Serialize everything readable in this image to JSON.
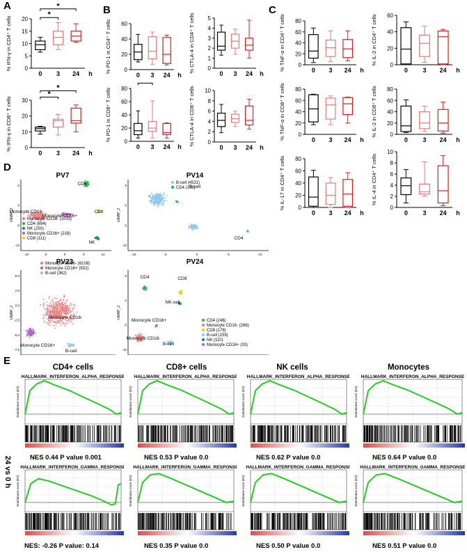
{
  "panels": {
    "A": "A",
    "B": "B",
    "C": "C",
    "D": "D",
    "E": "E"
  },
  "x_ticks": [
    "0",
    "3",
    "24"
  ],
  "x_unit": "h",
  "sig": "*",
  "colors": {
    "t0": "#000000",
    "t3": "#e8797a",
    "t24": "#d81e1e",
    "gsea_curve": "#22cc22",
    "heat_red": "#d9534f",
    "heat_blue": "#2a3fa8"
  },
  "chart_data": [
    {
      "id": "A1",
      "type": "box",
      "ylabel": "% IFN-γ in CD4⁺ T cells",
      "yticks": [
        "0",
        "5",
        "10",
        "15",
        "20"
      ],
      "ylim": [
        0,
        20
      ],
      "boxes": [
        {
          "min": 6.5,
          "q1": 7.5,
          "med": 9.5,
          "q3": 11,
          "max": 12.5
        },
        {
          "min": 7.5,
          "q1": 9.5,
          "med": 12.5,
          "q3": 15,
          "max": 18.5
        },
        {
          "min": 10.5,
          "q1": 11,
          "med": 13,
          "q3": 15,
          "max": 18
        }
      ]
    },
    {
      "id": "A2",
      "type": "box",
      "ylabel": "% IFN-γ in CD8⁺ T cells",
      "yticks": [
        "0",
        "10",
        "20",
        "30"
      ],
      "ylim": [
        0,
        30
      ],
      "boxes": [
        {
          "min": 8.5,
          "q1": 10.5,
          "med": 12,
          "q3": 13,
          "max": 13.5
        },
        {
          "min": 8,
          "q1": 13,
          "med": 17,
          "q3": 18,
          "max": 21
        },
        {
          "min": 10,
          "q1": 15.5,
          "med": 17,
          "q3": 25,
          "max": 27
        }
      ]
    },
    {
      "id": "B1",
      "type": "box",
      "ylabel": "% PD-1 in CD4⁺ T cells",
      "yticks": [
        "0",
        "20",
        "40",
        "60"
      ],
      "ylim": [
        0,
        60
      ],
      "boxes": [
        {
          "min": 10,
          "q1": 13,
          "med": 23,
          "q3": 33,
          "max": 46
        },
        {
          "min": 7,
          "q1": 14,
          "med": 24,
          "q3": 43,
          "max": 49
        },
        {
          "min": 6,
          "q1": 8,
          "med": 20,
          "q3": 42,
          "max": 45
        }
      ]
    },
    {
      "id": "B2",
      "type": "box",
      "ylabel": "% CTLA-4 in CD4⁺ T cells",
      "yticks": [
        "0",
        "1",
        "2",
        "3",
        "4",
        "5"
      ],
      "ylim": [
        0,
        5
      ],
      "boxes": [
        {
          "min": 1.3,
          "q1": 1.8,
          "med": 2.2,
          "q3": 3.6,
          "max": 4.3
        },
        {
          "min": 1.4,
          "q1": 2.0,
          "med": 2.7,
          "q3": 3.4,
          "max": 3.9
        },
        {
          "min": 1.0,
          "q1": 1.8,
          "med": 2.3,
          "q3": 3.0,
          "max": 4.8
        }
      ]
    },
    {
      "id": "B3",
      "type": "box",
      "ylabel": "% PD-1 in CD8⁺ T cells",
      "yticks": [
        "0",
        "20",
        "40",
        "60",
        "80"
      ],
      "ylim": [
        0,
        80
      ],
      "boxes": [
        {
          "min": 5,
          "q1": 10,
          "med": 16,
          "q3": 27,
          "max": 46
        },
        {
          "min": 5,
          "q1": 15,
          "med": 20,
          "q3": 30,
          "max": 61
        },
        {
          "min": 5,
          "q1": 10,
          "med": 13,
          "q3": 27,
          "max": 28
        }
      ]
    },
    {
      "id": "B4",
      "type": "box",
      "ylabel": "% CTLA-4 in CD8⁺ T cells",
      "yticks": [
        "0",
        "2",
        "4",
        "6",
        "8",
        "10"
      ],
      "ylim": [
        0,
        10
      ],
      "boxes": [
        {
          "min": 1.8,
          "q1": 3,
          "med": 4.2,
          "q3": 5.6,
          "max": 7.3
        },
        {
          "min": 3,
          "q1": 3.8,
          "med": 4.5,
          "q3": 5.4,
          "max": 6
        },
        {
          "min": 2.5,
          "q1": 3.3,
          "med": 4.2,
          "q3": 7,
          "max": 8.3
        }
      ]
    },
    {
      "id": "C1",
      "type": "box",
      "ylabel": "% TNF-α in CD4⁺ T cells",
      "yticks": [
        "0",
        "20",
        "40",
        "60",
        "80"
      ],
      "ylim": [
        0,
        80
      ],
      "boxes": [
        {
          "min": 4,
          "q1": 12,
          "med": 25,
          "q3": 55,
          "max": 67
        },
        {
          "min": 6,
          "q1": 15,
          "med": 31,
          "q3": 45,
          "max": 62
        },
        {
          "min": 7,
          "q1": 13,
          "med": 29,
          "q3": 46,
          "max": 62
        }
      ]
    },
    {
      "id": "C2",
      "type": "box",
      "ylabel": "% IL-2 in CD4⁺ T cells",
      "yticks": [
        "0",
        "20",
        "40",
        "60"
      ],
      "ylim": [
        0,
        60
      ],
      "boxes": [
        {
          "min": 0,
          "q1": 1,
          "med": 19,
          "q3": 45,
          "max": 52
        },
        {
          "min": 3,
          "q1": 10,
          "med": 26,
          "q3": 36,
          "max": 47
        },
        {
          "min": 0,
          "q1": 1,
          "med": 34,
          "q3": 41,
          "max": 43
        }
      ]
    },
    {
      "id": "C3",
      "type": "box",
      "ylabel": "% TNF-α in CD8⁺ T cells",
      "yticks": [
        "0",
        "20",
        "40",
        "60",
        "80"
      ],
      "ylim": [
        0,
        80
      ],
      "boxes": [
        {
          "min": 17,
          "q1": 22,
          "med": 45,
          "q3": 70,
          "max": 71
        },
        {
          "min": 17,
          "q1": 27,
          "med": 52,
          "q3": 64,
          "max": 68
        },
        {
          "min": 20,
          "q1": 35,
          "med": 54,
          "q3": 65,
          "max": 66
        }
      ]
    },
    {
      "id": "C4",
      "type": "box",
      "ylabel": "% IL-2 in CD8⁺ T cells",
      "yticks": [
        "0",
        "20",
        "40",
        "60",
        "80"
      ],
      "ylim": [
        0,
        80
      ],
      "boxes": [
        {
          "min": 3,
          "q1": 5,
          "med": 15,
          "q3": 50,
          "max": 61
        },
        {
          "min": 5,
          "q1": 10,
          "med": 20,
          "q3": 40,
          "max": 50
        },
        {
          "min": 2,
          "q1": 6,
          "med": 20,
          "q3": 44,
          "max": 57
        }
      ]
    },
    {
      "id": "C5",
      "type": "box",
      "ylabel": "% IL-17 in CD4⁺ T cells",
      "yticks": [
        "0",
        "20",
        "40",
        "60",
        "80"
      ],
      "ylim": [
        0,
        80
      ],
      "boxes": [
        {
          "min": 0,
          "q1": 2,
          "med": 17,
          "q3": 50,
          "max": 61
        },
        {
          "min": 0,
          "q1": 5,
          "med": 20,
          "q3": 40,
          "max": 49
        },
        {
          "min": 0,
          "q1": 2,
          "med": 22,
          "q3": 46,
          "max": 57
        }
      ]
    },
    {
      "id": "C6",
      "type": "box",
      "ylabel": "% IL-4 in CD4⁺ T cells",
      "yticks": [
        "0",
        "2",
        "4",
        "6",
        "8",
        "10"
      ],
      "ylim": [
        0,
        10
      ],
      "boxes": [
        {
          "min": 0.8,
          "q1": 2.3,
          "med": 3.9,
          "q3": 5.3,
          "max": 6.8
        },
        {
          "min": 2.0,
          "q1": 2.4,
          "med": 2.8,
          "q3": 4.2,
          "max": 8.2
        },
        {
          "min": 0.3,
          "q1": 0.8,
          "med": 3.0,
          "q3": 7.5,
          "max": 9.3
        }
      ]
    }
  ],
  "umaps": [
    {
      "id": "PV7",
      "title": "PV7",
      "xlabel": "UMAP_1",
      "ylabel": "UMAP_2",
      "xticks": [
        "-10",
        "-5",
        "0",
        "5",
        "10"
      ],
      "yticks": [
        "-10",
        "-5",
        "0",
        "5"
      ],
      "legend": [
        "Monocyte CD16- (1033)",
        "CD4 (694)",
        "NK (250)",
        "Monocyte CD16+ (218)",
        "CD8 (111)"
      ],
      "legend_colors": [
        "#f08080",
        "#2db84d",
        "#1b8f86",
        "#c060c8",
        "#e8d21a"
      ],
      "labels": [
        "CD4",
        "Monocyte CD16-",
        "Monocyte CD16+",
        "CD8",
        "NK"
      ]
    },
    {
      "id": "PV14",
      "title": "PV14",
      "xlabel": "UMAP_1",
      "ylabel": "UMAP_2",
      "xticks": [
        "-10",
        "-5",
        "0",
        "5",
        "10"
      ],
      "yticks": [
        "-10",
        "-5",
        "0",
        "5"
      ],
      "legend": [
        "B-cell (4531)",
        "CD4 (102)"
      ],
      "legend_colors": [
        "#8ec8f0",
        "#2db84d"
      ],
      "labels": [
        "B-cell",
        "CD4"
      ]
    },
    {
      "id": "PV23",
      "title": "PV23",
      "xlabel": "UMAP_1",
      "ylabel": "UMAP_2",
      "xticks": [
        "-5.0",
        "-2.5",
        "0.0",
        "2.5",
        "5.0"
      ],
      "yticks": [
        "-7.5",
        "-5.0",
        "-2.5",
        "0.0",
        "2.5",
        "5.0"
      ],
      "legend": [
        "Monocyte CD16- (6108)",
        "Monocyte CD16+ (932)",
        "B-cell (362)"
      ],
      "legend_colors": [
        "#f08080",
        "#b060c8",
        "#8ec8f0"
      ],
      "labels": [
        "Monocyte CD16-",
        "Monocyte CD16+",
        "B-cell"
      ]
    },
    {
      "id": "PV24",
      "title": "PV24",
      "xlabel": "UMAP_1",
      "ylabel": "UMAP_2",
      "xticks": [
        "-10",
        "-5",
        "0",
        "5",
        "10"
      ],
      "yticks": [
        "-10",
        "-5",
        "0",
        "5"
      ],
      "legend": [
        "CD4 (246)",
        "Monocyte CD16- (266)",
        "CD8 (178)",
        "B-cell (159)",
        "NK (110)",
        "Monocyte CD16+ (33)"
      ],
      "legend_colors": [
        "#2db84d",
        "#f08080",
        "#e8d21a",
        "#8ec8f0",
        "#1b8f86",
        "#c060c8"
      ],
      "labels": [
        "CD4",
        "CD8",
        "NK-cell",
        "Monocyte CD16+",
        "Monocyte CD16-",
        "B-cell"
      ]
    }
  ],
  "gsea": {
    "row_label": "24 vs 0 h",
    "ylabel": "Enrichment score (ES)",
    "columns": [
      "CD4+ cells",
      "CD8+ cells",
      "NK cells",
      "Monocytes"
    ],
    "rows": [
      {
        "title": "HALLMARK_INTERFERON_ALPHA_RESPONSE",
        "stats": [
          "NES 0.44  P value 0.001",
          "NES 0.53  P value 0.0",
          "NES 0.62  P value 0.0",
          "NES 0.64  P value 0.0"
        ]
      },
      {
        "title": "HALLMARK_INTERFERON_GAMMA_RESPONSE",
        "stats": [
          "NES: -0.26  P value: 0.14",
          "NES 0.35  P value 0.0",
          "NES 0.50  P value 0.0",
          "NES 0.51  P value 0.0"
        ]
      }
    ]
  }
}
